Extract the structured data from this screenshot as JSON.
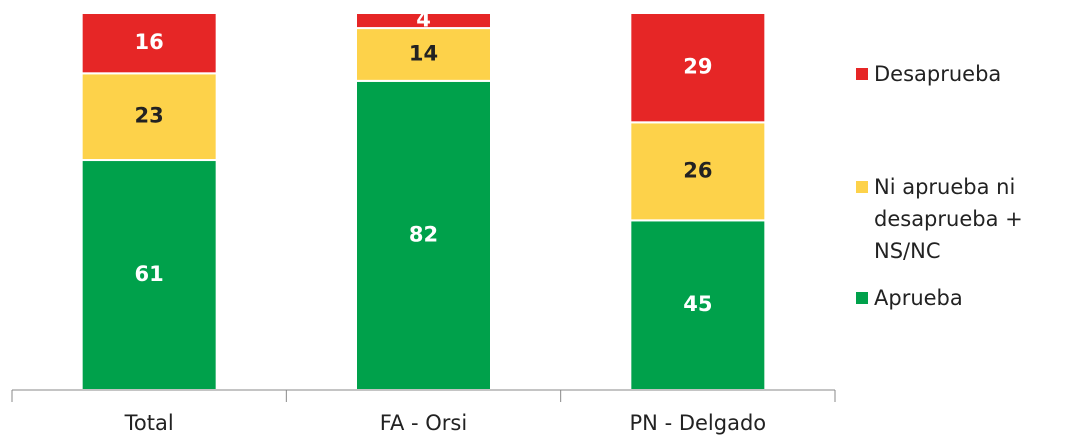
{
  "chart_data": {
    "type": "stacked_bar",
    "categories": [
      "Total",
      "FA - Orsi",
      "PN - Delgado"
    ],
    "series": [
      {
        "name": "Aprueba",
        "color": "#00a14b",
        "values": [
          61,
          82,
          45
        ]
      },
      {
        "name": "Ni aprueba ni desaprueba + NS/NC",
        "color": "#fdd24a",
        "values": [
          23,
          14,
          26
        ]
      },
      {
        "name": "Desaprueba",
        "color": "#e62626",
        "values": [
          16,
          4,
          29
        ]
      }
    ],
    "ylim": [
      0,
      100
    ],
    "legend": "right"
  }
}
